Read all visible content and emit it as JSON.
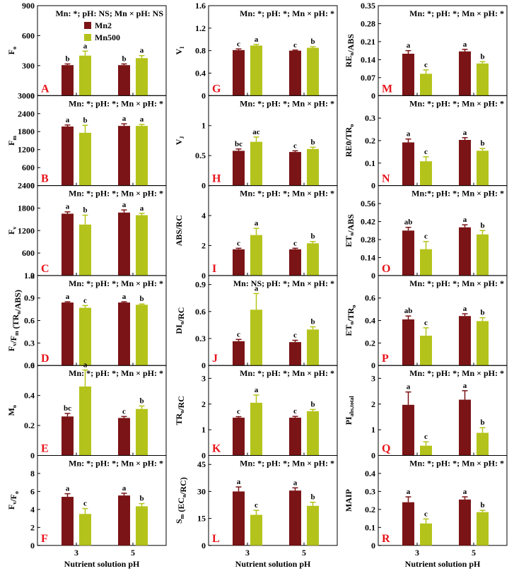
{
  "colors": {
    "Mn2": "#7b1416",
    "Mn500": "#b4c31b",
    "panel_letter": "#e8141b"
  },
  "legend": {
    "items": [
      "Mn2",
      "Mn500"
    ]
  },
  "xlabel": "Nutrient solution pH",
  "chart_data": [
    {
      "id": "A",
      "type": "bar",
      "categories": [
        "3",
        "5"
      ],
      "ylabel": "F",
      "ylabel_sub": "o",
      "ylabel_tail": "",
      "ylim": [
        0,
        900
      ],
      "yticks": [
        0,
        300,
        600,
        900
      ],
      "significance": "Mn: *; pH: NS; Mn × pH: NS",
      "series": [
        {
          "name": "Mn2",
          "values": [
            305,
            305
          ],
          "errors": [
            12,
            12
          ],
          "letters": [
            "b",
            "b"
          ]
        },
        {
          "name": "Mn500",
          "values": [
            400,
            375
          ],
          "errors": [
            45,
            25
          ],
          "letters": [
            "a",
            "a"
          ]
        }
      ]
    },
    {
      "id": "B",
      "type": "bar",
      "categories": [
        "3",
        "5"
      ],
      "ylabel": "F",
      "ylabel_sub": "m",
      "ylabel_tail": "",
      "ylim": [
        0,
        3000
      ],
      "yticks": [
        0,
        600,
        1200,
        1800,
        2400,
        3000
      ],
      "significance": "Mn: *; pH: *; Mn × pH: *",
      "series": [
        {
          "name": "Mn2",
          "values": [
            1970,
            1990
          ],
          "errors": [
            50,
            70
          ],
          "letters": [
            "a",
            "a"
          ]
        },
        {
          "name": "Mn500",
          "values": [
            1760,
            1990
          ],
          "errors": [
            250,
            50
          ],
          "letters": [
            "b",
            "a"
          ]
        }
      ]
    },
    {
      "id": "C",
      "type": "bar",
      "categories": [
        "3",
        "5"
      ],
      "ylabel": "F",
      "ylabel_sub": "v",
      "ylabel_tail": "",
      "ylim": [
        0,
        2400
      ],
      "yticks": [
        0,
        600,
        1200,
        1800,
        2400
      ],
      "significance": "Mn: *; pH: *; Mn × pH: *",
      "series": [
        {
          "name": "Mn2",
          "values": [
            1650,
            1680
          ],
          "errors": [
            50,
            70
          ],
          "letters": [
            "a",
            "a"
          ]
        },
        {
          "name": "Mn500",
          "values": [
            1360,
            1610
          ],
          "errors": [
            250,
            50
          ],
          "letters": [
            "b",
            "a"
          ]
        }
      ]
    },
    {
      "id": "D",
      "type": "bar",
      "categories": [
        "3",
        "5"
      ],
      "ylabel": "F",
      "ylabel_sub": "v",
      "ylabel_tail": "/F",
      "ylabel_sub2": "m",
      "ylabel_tail2": " (TR",
      "ylabel_sub3": "o",
      "ylabel_tail3": "/ABS)",
      "ylim": [
        0,
        1.2
      ],
      "yticks": [
        0,
        0.3,
        0.6,
        0.9,
        1.2
      ],
      "significance": "Mn: *; pH: *; Mn × pH: *",
      "series": [
        {
          "name": "Mn2",
          "values": [
            0.84,
            0.84
          ],
          "errors": [
            0.01,
            0.01
          ],
          "letters": [
            "a",
            "a"
          ]
        },
        {
          "name": "Mn500",
          "values": [
            0.77,
            0.81
          ],
          "errors": [
            0.03,
            0.01
          ],
          "letters": [
            "c",
            "b"
          ]
        }
      ]
    },
    {
      "id": "E",
      "type": "bar",
      "categories": [
        "3",
        "5"
      ],
      "ylabel": "M",
      "ylabel_sub": "o",
      "ylabel_tail": "",
      "ylim": [
        0,
        0.6
      ],
      "yticks": [
        0,
        0.2,
        0.4,
        0.6
      ],
      "significance": "Mn: *; pH: *; Mn × pH: *",
      "series": [
        {
          "name": "Mn2",
          "values": [
            0.26,
            0.25
          ],
          "errors": [
            0.02,
            0.01
          ],
          "letters": [
            "bc",
            "c"
          ]
        },
        {
          "name": "Mn500",
          "values": [
            0.46,
            0.31
          ],
          "errors": [
            0.11,
            0.02
          ],
          "letters": [
            "a",
            "b"
          ]
        }
      ]
    },
    {
      "id": "F",
      "type": "bar",
      "categories": [
        "3",
        "5"
      ],
      "ylabel": "F",
      "ylabel_sub": "v",
      "ylabel_tail": "/F",
      "ylabel_sub2": "o",
      "ylabel_tail2": "",
      "ylim": [
        0,
        10
      ],
      "yticks": [
        0,
        2,
        4,
        6,
        8
      ],
      "significance": "Mn: *; pH: *; Mn × pH: *",
      "series": [
        {
          "name": "Mn2",
          "values": [
            5.4,
            5.55
          ],
          "errors": [
            0.35,
            0.25
          ],
          "letters": [
            "a",
            "a"
          ]
        },
        {
          "name": "Mn500",
          "values": [
            3.5,
            4.35
          ],
          "errors": [
            0.6,
            0.3
          ],
          "letters": [
            "c",
            "b"
          ]
        }
      ]
    },
    {
      "id": "G",
      "type": "bar",
      "categories": [
        "3",
        "5"
      ],
      "ylabel": "V",
      "ylabel_sub": "I",
      "ylabel_tail": "",
      "ylim": [
        0,
        1.6
      ],
      "yticks": [
        0,
        0.4,
        0.8,
        1.2,
        1.6
      ],
      "significance": "Mn: *; pH: *; Mn × pH: *",
      "series": [
        {
          "name": "Mn2",
          "values": [
            0.81,
            0.8
          ],
          "errors": [
            0.02,
            0.01
          ],
          "letters": [
            "c",
            "c"
          ]
        },
        {
          "name": "Mn500",
          "values": [
            0.89,
            0.85
          ],
          "errors": [
            0.02,
            0.02
          ],
          "letters": [
            "a",
            "b"
          ]
        }
      ]
    },
    {
      "id": "H",
      "type": "bar",
      "categories": [
        "3",
        "5"
      ],
      "ylabel": "V",
      "ylabel_sub": "J",
      "ylabel_tail": "",
      "ylim": [
        0,
        1.5
      ],
      "yticks": [
        0,
        0.5,
        1.0
      ],
      "significance": "Mn: *; pH: *; Mn × pH: *",
      "series": [
        {
          "name": "Mn2",
          "values": [
            0.58,
            0.56
          ],
          "errors": [
            0.03,
            0.02
          ],
          "letters": [
            "bc",
            "c"
          ]
        },
        {
          "name": "Mn500",
          "values": [
            0.73,
            0.61
          ],
          "errors": [
            0.08,
            0.03
          ],
          "letters": [
            "ac",
            "b"
          ]
        }
      ]
    },
    {
      "id": "I",
      "type": "bar",
      "categories": [
        "3",
        "5"
      ],
      "ylabel": "ABS/RC",
      "ylabel_sub": "",
      "ylabel_tail": "",
      "ylim": [
        0,
        6
      ],
      "yticks": [
        0,
        2,
        4
      ],
      "significance": "Mn: *; pH: *; Mn × pH: *",
      "series": [
        {
          "name": "Mn2",
          "values": [
            1.75,
            1.75
          ],
          "errors": [
            0.07,
            0.07
          ],
          "letters": [
            "c",
            "c"
          ]
        },
        {
          "name": "Mn500",
          "values": [
            2.7,
            2.15
          ],
          "errors": [
            0.45,
            0.12
          ],
          "letters": [
            "a",
            "b"
          ]
        }
      ]
    },
    {
      "id": "J",
      "type": "bar",
      "categories": [
        "3",
        "5"
      ],
      "ylabel": "DI",
      "ylabel_sub": "o",
      "ylabel_tail": "/RC",
      "ylim": [
        0,
        1.0
      ],
      "yticks": [
        0,
        0.3,
        0.6,
        0.9
      ],
      "significance": "Mn: NS; pH: *; Mn × pH: *",
      "series": [
        {
          "name": "Mn2",
          "values": [
            0.27,
            0.26
          ],
          "errors": [
            0.02,
            0.02
          ],
          "letters": [
            "c",
            "c"
          ]
        },
        {
          "name": "Mn500",
          "values": [
            0.62,
            0.4
          ],
          "errors": [
            0.18,
            0.03
          ],
          "letters": [
            "a",
            "b"
          ]
        }
      ]
    },
    {
      "id": "K",
      "type": "bar",
      "categories": [
        "3",
        "5"
      ],
      "ylabel": "TR",
      "ylabel_sub": "o",
      "ylabel_tail": "/RC",
      "ylim": [
        0,
        3.5
      ],
      "yticks": [
        0,
        1,
        2,
        3
      ],
      "significance": "Mn: *; pH: *; Mn × pH: *",
      "series": [
        {
          "name": "Mn2",
          "values": [
            1.47,
            1.47
          ],
          "errors": [
            0.04,
            0.05
          ],
          "letters": [
            "c",
            "c"
          ]
        },
        {
          "name": "Mn500",
          "values": [
            2.05,
            1.72
          ],
          "errors": [
            0.3,
            0.07
          ],
          "letters": [
            "a",
            "b"
          ]
        }
      ]
    },
    {
      "id": "L",
      "type": "bar",
      "categories": [
        "3",
        "5"
      ],
      "ylabel": "S",
      "ylabel_sub": "m",
      "ylabel_tail": " (EC",
      "ylabel_sub2": "o",
      "ylabel_tail2": "/RC)",
      "ylim": [
        0,
        50
      ],
      "yticks": [
        0,
        15,
        30,
        45
      ],
      "significance": "Mn: *; pH: *; Mn × pH: *",
      "series": [
        {
          "name": "Mn2",
          "values": [
            30,
            30.5
          ],
          "errors": [
            2.5,
            1.5
          ],
          "letters": [
            "a",
            "a"
          ]
        },
        {
          "name": "Mn500",
          "values": [
            17,
            22
          ],
          "errors": [
            2.5,
            2
          ],
          "letters": [
            "c",
            "b"
          ]
        }
      ]
    },
    {
      "id": "M",
      "type": "bar",
      "categories": [
        "3",
        "5"
      ],
      "ylabel": "RE",
      "ylabel_sub": "o",
      "ylabel_tail": "/ABS",
      "ylim": [
        0,
        0.35
      ],
      "yticks": [
        0,
        0.07,
        0.14,
        0.21,
        0.28,
        0.35
      ],
      "significance": "Mn: *; pH: *; Mn × pH: *",
      "series": [
        {
          "name": "Mn2",
          "values": [
            0.163,
            0.172
          ],
          "errors": [
            0.012,
            0.008
          ],
          "letters": [
            "a",
            "a"
          ]
        },
        {
          "name": "Mn500",
          "values": [
            0.085,
            0.125
          ],
          "errors": [
            0.015,
            0.007
          ],
          "letters": [
            "c",
            "b"
          ]
        }
      ]
    },
    {
      "id": "N",
      "type": "bar",
      "categories": [
        "3",
        "5"
      ],
      "ylabel": "RE0/TR",
      "ylabel_sub": "o",
      "ylabel_tail": "",
      "ylim": [
        0,
        0.4
      ],
      "yticks": [
        0,
        0.1,
        0.2,
        0.3
      ],
      "significance": "Mn: *; pH: *; Mn × pH: *",
      "series": [
        {
          "name": "Mn2",
          "values": [
            0.192,
            0.203
          ],
          "errors": [
            0.015,
            0.01
          ],
          "letters": [
            "a",
            "a"
          ]
        },
        {
          "name": "Mn500",
          "values": [
            0.108,
            0.155
          ],
          "errors": [
            0.02,
            0.01
          ],
          "letters": [
            "c",
            "b"
          ]
        }
      ]
    },
    {
      "id": "O",
      "type": "bar",
      "categories": [
        "3",
        "5"
      ],
      "ylabel": "ET",
      "ylabel_sub": "o",
      "ylabel_tail": "/ABS",
      "ylim": [
        0,
        0.7
      ],
      "yticks": [
        0,
        0.14,
        0.28,
        0.42,
        0.56
      ],
      "significance": "Mn:*; pH: *; Mn × pH: *",
      "series": [
        {
          "name": "Mn2",
          "values": [
            0.35,
            0.375
          ],
          "errors": [
            0.025,
            0.02
          ],
          "letters": [
            "ab",
            "a"
          ]
        },
        {
          "name": "Mn500",
          "values": [
            0.205,
            0.32
          ],
          "errors": [
            0.06,
            0.03
          ],
          "letters": [
            "c",
            "b"
          ]
        }
      ]
    },
    {
      "id": "P",
      "type": "bar",
      "categories": [
        "3",
        "5"
      ],
      "ylabel": "ET",
      "ylabel_sub": "o",
      "ylabel_tail": "/TR",
      "ylabel_sub2": "o",
      "ylabel_tail2": "",
      "ylim": [
        0,
        0.8
      ],
      "yticks": [
        0,
        0.2,
        0.4,
        0.6
      ],
      "significance": "Mn: *; pH: *; Mn × pH: *",
      "series": [
        {
          "name": "Mn2",
          "values": [
            0.41,
            0.44
          ],
          "errors": [
            0.03,
            0.02
          ],
          "letters": [
            "ab",
            "a"
          ]
        },
        {
          "name": "Mn500",
          "values": [
            0.265,
            0.395
          ],
          "errors": [
            0.07,
            0.03
          ],
          "letters": [
            "c",
            "b"
          ]
        }
      ]
    },
    {
      "id": "Q",
      "type": "bar",
      "categories": [
        "3",
        "5"
      ],
      "ylabel": "PI",
      "ylabel_sub": "abs,total",
      "ylabel_tail": "",
      "ylim": [
        0,
        3.5
      ],
      "yticks": [
        0,
        1,
        2,
        3
      ],
      "significance": "Mn: *; pH: *; Mn × pH: *",
      "series": [
        {
          "name": "Mn2",
          "values": [
            1.97,
            2.17
          ],
          "errors": [
            0.5,
            0.35
          ],
          "letters": [
            "a",
            "a"
          ]
        },
        {
          "name": "Mn500",
          "values": [
            0.38,
            0.88
          ],
          "errors": [
            0.15,
            0.2
          ],
          "letters": [
            "c",
            "b"
          ]
        }
      ]
    },
    {
      "id": "R",
      "type": "bar",
      "categories": [
        "3",
        "5"
      ],
      "ylabel": "MAIP",
      "ylabel_sub": "",
      "ylabel_tail": "",
      "ylim": [
        0,
        0.5
      ],
      "yticks": [
        0,
        0.1,
        0.2,
        0.3,
        0.4
      ],
      "significance": "Mn: *; pH: *; Mn × pH: *",
      "series": [
        {
          "name": "Mn2",
          "values": [
            0.24,
            0.255
          ],
          "errors": [
            0.03,
            0.015
          ],
          "letters": [
            "a",
            "a"
          ]
        },
        {
          "name": "Mn500",
          "values": [
            0.122,
            0.185
          ],
          "errors": [
            0.025,
            0.01
          ],
          "letters": [
            "c",
            "b"
          ]
        }
      ]
    }
  ]
}
